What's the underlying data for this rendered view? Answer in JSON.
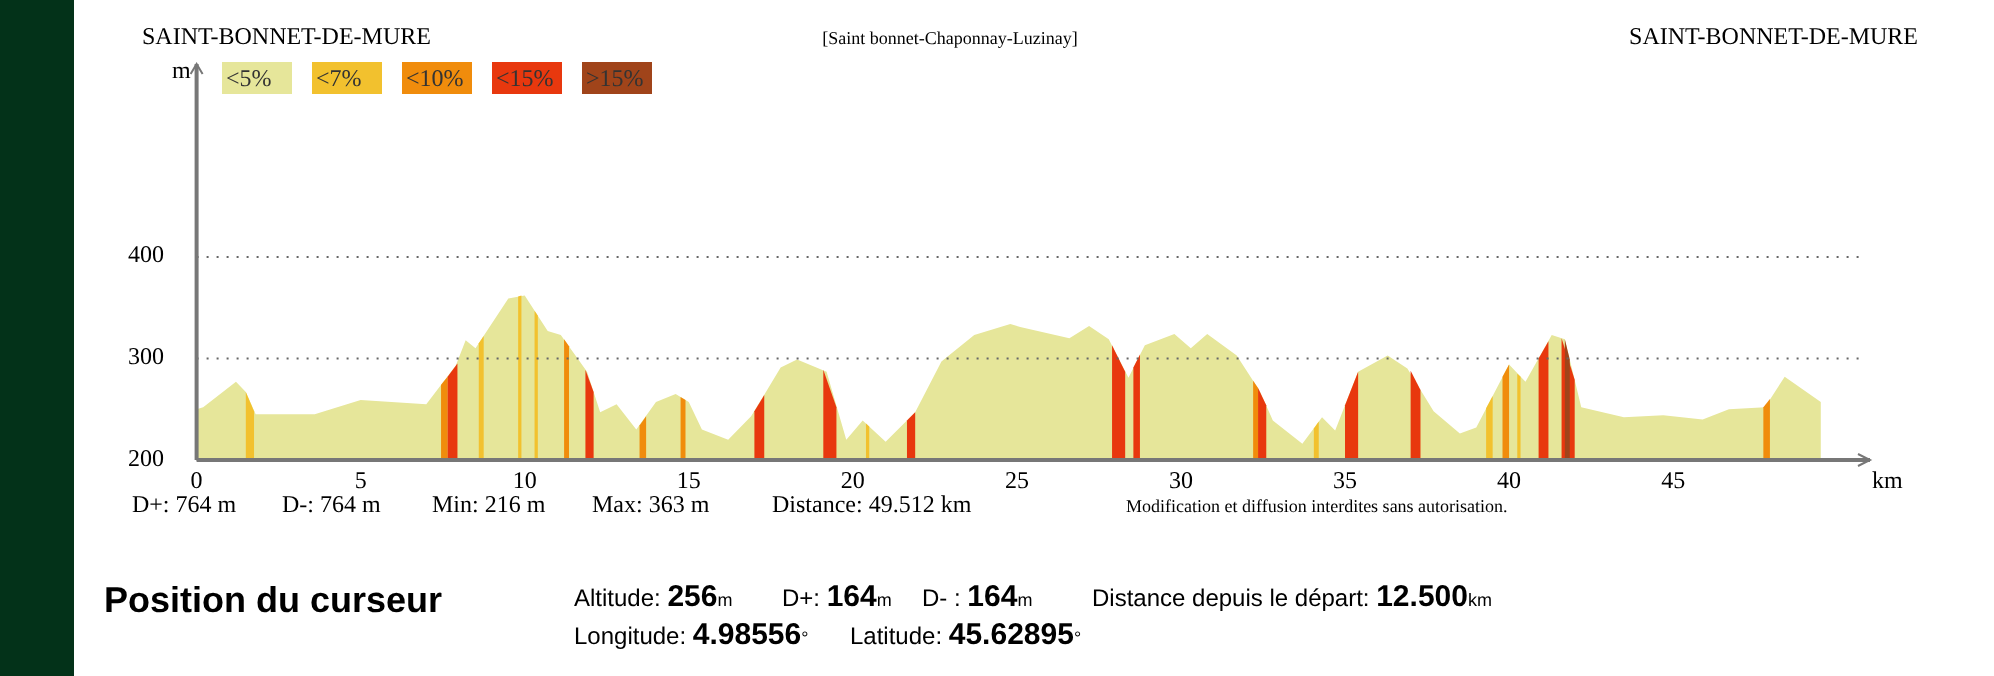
{
  "chart_data": {
    "type": "area",
    "title": "[Saint bonnet-Chaponnay-Luzinay]",
    "xlabel": "km",
    "ylabel": "m",
    "xlim": [
      0,
      51
    ],
    "ylim": [
      200,
      590
    ],
    "xticks": [
      0,
      5,
      10,
      15,
      20,
      25,
      30,
      35,
      40,
      45
    ],
    "yticks": [
      200,
      300,
      400
    ],
    "grid": "y",
    "legend": "top left",
    "series": [
      {
        "name": "<5%",
        "color": "#e6e69a",
        "x": [
          0,
          0.2,
          1.2,
          1.5,
          1.8,
          3.6,
          5,
          7,
          7.9,
          8.2,
          8.5,
          9.5,
          10,
          10.7,
          11.1,
          11.9,
          12.3,
          12.8,
          13.4,
          14,
          14.6,
          15,
          15.4,
          16.2,
          16.9,
          17.8,
          18.3,
          19.2,
          19.8,
          20.3,
          21,
          21.9,
          22.7,
          23.7,
          24.8,
          25.1,
          26.6,
          27.2,
          27.8,
          28.4,
          28.9,
          29.8,
          30.3,
          30.8,
          31.7,
          32.4,
          32.8,
          33.7,
          34.3,
          34.7,
          35.4,
          36.3,
          36.9,
          37.7,
          38.5,
          39,
          40,
          40.5,
          41.3,
          41.7,
          42.2,
          43.5,
          44.7,
          45.9,
          46.7,
          47.8,
          48.4,
          49.5
        ],
        "values": [
          250,
          252,
          277,
          267,
          245,
          245,
          259,
          255,
          293,
          318,
          310,
          359,
          362,
          327,
          323,
          287,
          247,
          255,
          230,
          257,
          265,
          257,
          230,
          220,
          243,
          291,
          299,
          287,
          220,
          239,
          218,
          247,
          297,
          323,
          334,
          331,
          320,
          332,
          319,
          281,
          313,
          324,
          310,
          324,
          303,
          268,
          239,
          216,
          242,
          229,
          287,
          303,
          290,
          248,
          226,
          232,
          294,
          277,
          323,
          319,
          252,
          242,
          244,
          240,
          250,
          252,
          282,
          257
        ]
      },
      {
        "name": "<7%",
        "color": "#f2c12e",
        "x": [
          1.5,
          1.75
        ],
        "values": [
          267,
          248
        ]
      },
      {
        "color": "#f2c12e",
        "x": [
          8.6,
          8.75
        ],
        "values": [
          315,
          322
        ]
      },
      {
        "color": "#f2c12e",
        "x": [
          9.8,
          9.9
        ],
        "values": [
          361,
          362
        ]
      },
      {
        "color": "#f2c12e",
        "x": [
          10.3,
          10.4
        ],
        "values": [
          347,
          342
        ]
      },
      {
        "color": "#f2c12e",
        "x": [
          20.4,
          20.5
        ],
        "values": [
          236,
          233
        ]
      },
      {
        "color": "#f2c12e",
        "x": [
          34.05,
          34.2
        ],
        "values": [
          231,
          238
        ]
      },
      {
        "color": "#f2c12e",
        "x": [
          39.3,
          39.5
        ],
        "values": [
          251,
          263
        ]
      },
      {
        "color": "#f2c12e",
        "x": [
          40.25,
          40.35
        ],
        "values": [
          285,
          282
        ]
      },
      {
        "name": "<10%",
        "color": "#f08c0c",
        "x": [
          7.45,
          7.65
        ],
        "values": [
          274,
          282
        ]
      },
      {
        "color": "#f08c0c",
        "x": [
          11.2,
          11.35
        ],
        "values": [
          319,
          312
        ]
      },
      {
        "color": "#f08c0c",
        "x": [
          13.5,
          13.7
        ],
        "values": [
          234,
          243
        ]
      },
      {
        "color": "#f08c0c",
        "x": [
          14.75,
          14.9
        ],
        "values": [
          262,
          259
        ]
      },
      {
        "color": "#f08c0c",
        "x": [
          32.2,
          32.35
        ],
        "values": [
          278,
          271
        ]
      },
      {
        "color": "#f08c0c",
        "x": [
          39.8,
          40
        ],
        "values": [
          282,
          294
        ]
      },
      {
        "color": "#f08c0c",
        "x": [
          47.75,
          47.95
        ],
        "values": [
          252,
          260
        ]
      },
      {
        "name": "<15%",
        "color": "#e8380e",
        "x": [
          7.65,
          7.95
        ],
        "values": [
          282,
          295
        ]
      },
      {
        "color": "#e8380e",
        "x": [
          11.85,
          12.1
        ],
        "values": [
          289,
          267
        ]
      },
      {
        "color": "#e8380e",
        "x": [
          17,
          17.3
        ],
        "values": [
          248,
          264
        ]
      },
      {
        "color": "#e8380e",
        "x": [
          19.1,
          19.5
        ],
        "values": [
          289,
          252
        ]
      },
      {
        "color": "#e8380e",
        "x": [
          21.65,
          21.9
        ],
        "values": [
          239,
          247
        ]
      },
      {
        "color": "#e8380e",
        "x": [
          27.9,
          28.3
        ],
        "values": [
          313,
          287
        ]
      },
      {
        "color": "#e8380e",
        "x": [
          28.55,
          28.75
        ],
        "values": [
          291,
          304
        ]
      },
      {
        "color": "#e8380e",
        "x": [
          32.35,
          32.6
        ],
        "values": [
          271,
          254
        ]
      },
      {
        "color": "#e8380e",
        "x": [
          35,
          35.4
        ],
        "values": [
          254,
          287
        ]
      },
      {
        "color": "#e8380e",
        "x": [
          37,
          37.3
        ],
        "values": [
          288,
          269
        ]
      },
      {
        "color": "#e8380e",
        "x": [
          40.9,
          41.2
        ],
        "values": [
          300,
          317
        ]
      },
      {
        "color": "#e8380e",
        "x": [
          41.6,
          42
        ],
        "values": [
          320,
          279
        ]
      },
      {
        "name": ">15%",
        "color": "#a0441a",
        "x": [
          41.7,
          41.85
        ],
        "values": [
          319,
          299
        ]
      }
    ],
    "annotations": [
      "SAINT-BONNET-DE-MURE",
      "SAINT-BONNET-DE-MURE",
      "D+: 764 m",
      "D-: 764 m",
      "Min: 216 m",
      "Max: 363 m",
      "Distance: 49.512 km",
      "Modification et diffusion interdites sans autorisation.",
      "Position du curseur",
      "Altitude: 256m",
      "D+: 164m",
      "D- : 164m",
      "Distance depuis le départ: 12.500km",
      "Longitude: 4.98556°",
      "Latitude: 45.62895°"
    ]
  }
}
